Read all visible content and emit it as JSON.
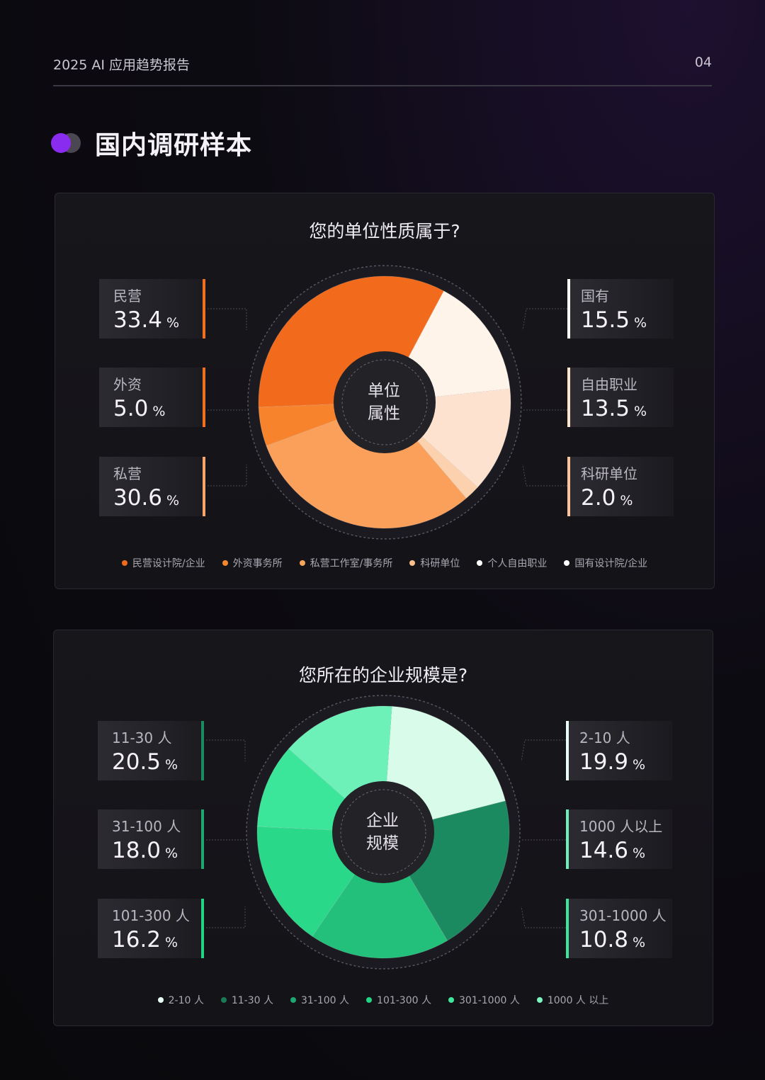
{
  "header": {
    "report_title": "2025 AI 应用趋势报告",
    "page_number": "04"
  },
  "section": {
    "title": "国内调研样本"
  },
  "charts": [
    {
      "title": "您的单位性质属于?",
      "center": [
        "单位",
        "属性"
      ],
      "stats_left": [
        {
          "label": "民营",
          "value": "33.4",
          "unit": "%"
        },
        {
          "label": "外资",
          "value": "5.0",
          "unit": "%"
        },
        {
          "label": "私营",
          "value": "30.6",
          "unit": "%"
        }
      ],
      "stats_right": [
        {
          "label": "国有",
          "value": "15.5",
          "unit": "%"
        },
        {
          "label": "自由职业",
          "value": "13.5",
          "unit": "%"
        },
        {
          "label": "科研单位",
          "value": "2.0",
          "unit": "%"
        }
      ],
      "legend": [
        "民营设计院/企业",
        "外资事务所",
        "私营工作室/事务所",
        "科研单位",
        "个人自由职业",
        "国有设计院/企业"
      ],
      "legend_colors": [
        "#f26a1b",
        "#f5872e",
        "#f9a55a",
        "#fbc08c",
        "#ffffff",
        "#ffffff"
      ]
    },
    {
      "title": "您所在的企业规模是?",
      "center": [
        "企业",
        "规模"
      ],
      "stats_left": [
        {
          "label": "11-30 人",
          "value": "20.5",
          "unit": "%"
        },
        {
          "label": "31-100 人",
          "value": "18.0",
          "unit": "%"
        },
        {
          "label": "101-300 人",
          "value": "16.2",
          "unit": "%"
        }
      ],
      "stats_right": [
        {
          "label": "2-10 人",
          "value": "19.9",
          "unit": "%"
        },
        {
          "label": "1000 人以上",
          "value": "14.6",
          "unit": "%"
        },
        {
          "label": "301-1000 人",
          "value": "10.8",
          "unit": "%"
        }
      ],
      "legend": [
        "2-10 人",
        "11-30 人",
        "31-100 人",
        "101-300 人",
        "301-1000 人",
        "1000 人 以上"
      ],
      "legend_colors": [
        "#e8fff5",
        "#1a7a55",
        "#1ea870",
        "#22d485",
        "#3ee89c",
        "#7df5c2"
      ]
    }
  ],
  "chart_data": [
    {
      "type": "pie",
      "title": "您的单位性质属于?",
      "categories": [
        "民营设计院/企业",
        "外资事务所",
        "私营工作室/事务所",
        "科研单位",
        "个人自由职业",
        "国有设计院/企业"
      ],
      "values": [
        33.4,
        5.0,
        30.6,
        2.0,
        13.5,
        15.5
      ],
      "colors": [
        "#f26a1b",
        "#f7842c",
        "#fba05a",
        "#fcd1ad",
        "#fde3cf",
        "#fff4ea"
      ],
      "start_angle_deg": 28,
      "direction": "counterclockwise"
    },
    {
      "type": "pie",
      "title": "您所在的企业规模是?",
      "categories": [
        "2-10 人",
        "11-30 人",
        "31-100 人",
        "101-300 人",
        "301-1000 人",
        "1000 人 以上"
      ],
      "values": [
        19.9,
        20.5,
        18.0,
        16.2,
        10.8,
        14.6
      ],
      "colors": [
        "#d8fbea",
        "#1c8a60",
        "#22c07a",
        "#2ad889",
        "#3be69a",
        "#6ef1b8"
      ],
      "start_angle_deg": 4,
      "direction": "clockwise"
    }
  ]
}
